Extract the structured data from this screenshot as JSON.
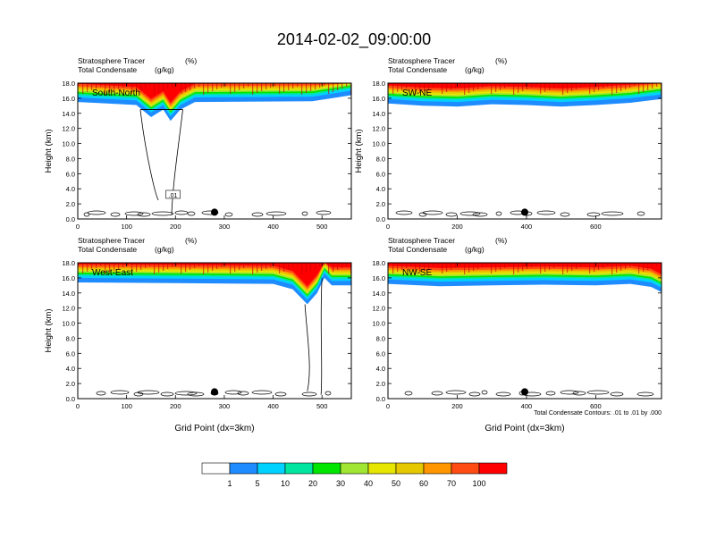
{
  "title": "2014-02-02_09:00:00",
  "colorbar": {
    "colors": [
      "#ffffff",
      "#1e8cff",
      "#00d2ff",
      "#00e6a0",
      "#00e600",
      "#a0e632",
      "#e6e600",
      "#e6c800",
      "#ff9600",
      "#ff4b14",
      "#ff0000"
    ],
    "labels": [
      "1",
      "5",
      "10",
      "20",
      "30",
      "40",
      "50",
      "60",
      "70",
      "100"
    ]
  },
  "chart_data": [
    {
      "type": "heatmap",
      "panel": "South-North",
      "subtitle_left_1": "Stratosphere Tracer",
      "subtitle_right_1": "(%)",
      "subtitle_left_2": "Total Condensate",
      "subtitle_right_2": "(g/kg)",
      "ylabel": "Height (km)",
      "xlabel": "",
      "xlim": [
        0,
        560
      ],
      "ylim": [
        0,
        18
      ],
      "xticks": [
        0,
        100,
        200,
        300,
        400,
        500
      ],
      "yticks": [
        "0.0",
        "2.0",
        "4.0",
        "6.0",
        "8.0",
        "10.0",
        "12.0",
        "14.0",
        "16.0",
        "18.0"
      ],
      "marker_x": 280,
      "tropopause": [
        [
          0,
          15.5
        ],
        [
          60,
          15.3
        ],
        [
          120,
          15.1
        ],
        [
          150,
          13.5
        ],
        [
          175,
          14.5
        ],
        [
          190,
          13.0
        ],
        [
          210,
          14.5
        ],
        [
          240,
          15.5
        ],
        [
          480,
          15.6
        ],
        [
          560,
          16.4
        ]
      ],
      "contour_label": ".01",
      "annotation": ""
    },
    {
      "type": "heatmap",
      "panel": "SW-NE",
      "subtitle_left_1": "Stratosphere Tracer",
      "subtitle_right_1": "(%)",
      "subtitle_left_2": "Total Condensate",
      "subtitle_right_2": "(g/kg)",
      "ylabel": "Height (km)",
      "xlabel": "",
      "xlim": [
        0,
        790
      ],
      "ylim": [
        0,
        18
      ],
      "xticks": [
        0,
        200,
        400,
        600
      ],
      "yticks": [
        "0.0",
        "2.0",
        "4.0",
        "6.0",
        "8.0",
        "10.0",
        "12.0",
        "14.0",
        "16.0",
        "18.0"
      ],
      "marker_x": 395,
      "tropopause": [
        [
          0,
          15.3
        ],
        [
          100,
          15.0
        ],
        [
          200,
          14.9
        ],
        [
          300,
          15.2
        ],
        [
          400,
          15.1
        ],
        [
          500,
          14.9
        ],
        [
          600,
          15.1
        ],
        [
          700,
          15.4
        ],
        [
          790,
          15.9
        ]
      ],
      "contour_label": "",
      "annotation": ""
    },
    {
      "type": "heatmap",
      "panel": "West-East",
      "subtitle_left_1": "Stratosphere Tracer",
      "subtitle_right_1": "(%)",
      "subtitle_left_2": "Total Condensate",
      "subtitle_right_2": "(g/kg)",
      "ylabel": "Height (km)",
      "xlabel": "Grid Point (dx=3km)",
      "xlim": [
        0,
        560
      ],
      "ylim": [
        0,
        18
      ],
      "xticks": [
        0,
        100,
        200,
        300,
        400,
        500
      ],
      "yticks": [
        "0.0",
        "2.0",
        "4.0",
        "6.0",
        "8.0",
        "10.0",
        "12.0",
        "14.0",
        "16.0",
        "18.0"
      ],
      "marker_x": 280,
      "tropopause": [
        [
          0,
          15.4
        ],
        [
          200,
          15.3
        ],
        [
          400,
          15.2
        ],
        [
          440,
          14.5
        ],
        [
          470,
          12.5
        ],
        [
          490,
          14.0
        ],
        [
          505,
          16.0
        ],
        [
          520,
          15.0
        ],
        [
          560,
          15.0
        ]
      ],
      "contour_label": "",
      "annotation": ""
    },
    {
      "type": "heatmap",
      "panel": "NW-SE",
      "subtitle_left_1": "Stratosphere Tracer",
      "subtitle_right_1": "(%)",
      "subtitle_left_2": "Total Condensate",
      "subtitle_right_2": "(g/kg)",
      "ylabel": "",
      "xlabel": "Grid Point (dx=3km)",
      "xlim": [
        0,
        790
      ],
      "ylim": [
        0,
        18
      ],
      "xticks": [
        0,
        200,
        400,
        600
      ],
      "yticks": [
        "0.0",
        "2.0",
        "4.0",
        "6.0",
        "8.0",
        "10.0",
        "12.0",
        "14.0",
        "16.0",
        "18.0"
      ],
      "marker_x": 395,
      "tropopause": [
        [
          0,
          15.2
        ],
        [
          150,
          14.9
        ],
        [
          300,
          15.0
        ],
        [
          450,
          15.1
        ],
        [
          600,
          15.0
        ],
        [
          700,
          15.2
        ],
        [
          760,
          14.8
        ],
        [
          790,
          14.1
        ]
      ],
      "contour_label": "",
      "annotation": "Total Condensate Contours: .01 to .01 by .000"
    }
  ]
}
